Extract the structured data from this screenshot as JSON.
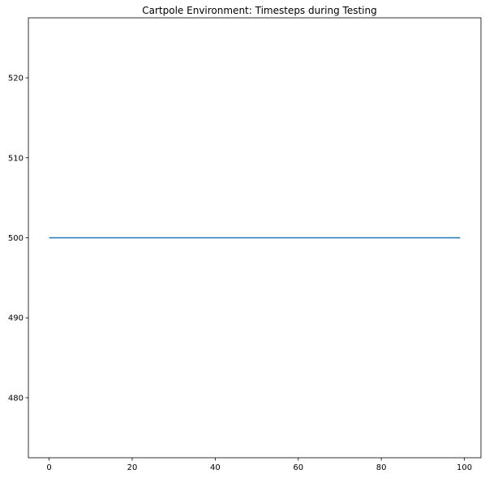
{
  "chart_data": {
    "type": "line",
    "title": "Cartpole Environment: Timesteps during Testing",
    "xlabel": "",
    "ylabel": "",
    "xlim": [
      -5,
      104
    ],
    "ylim": [
      472.5,
      527.5
    ],
    "xticks": [
      0,
      20,
      40,
      60,
      80,
      100
    ],
    "yticks": [
      480,
      490,
      500,
      510,
      520
    ],
    "grid": false,
    "series": [
      {
        "x": [
          0,
          99
        ],
        "y": [
          500,
          500
        ],
        "color": "#1f77b4"
      }
    ]
  }
}
